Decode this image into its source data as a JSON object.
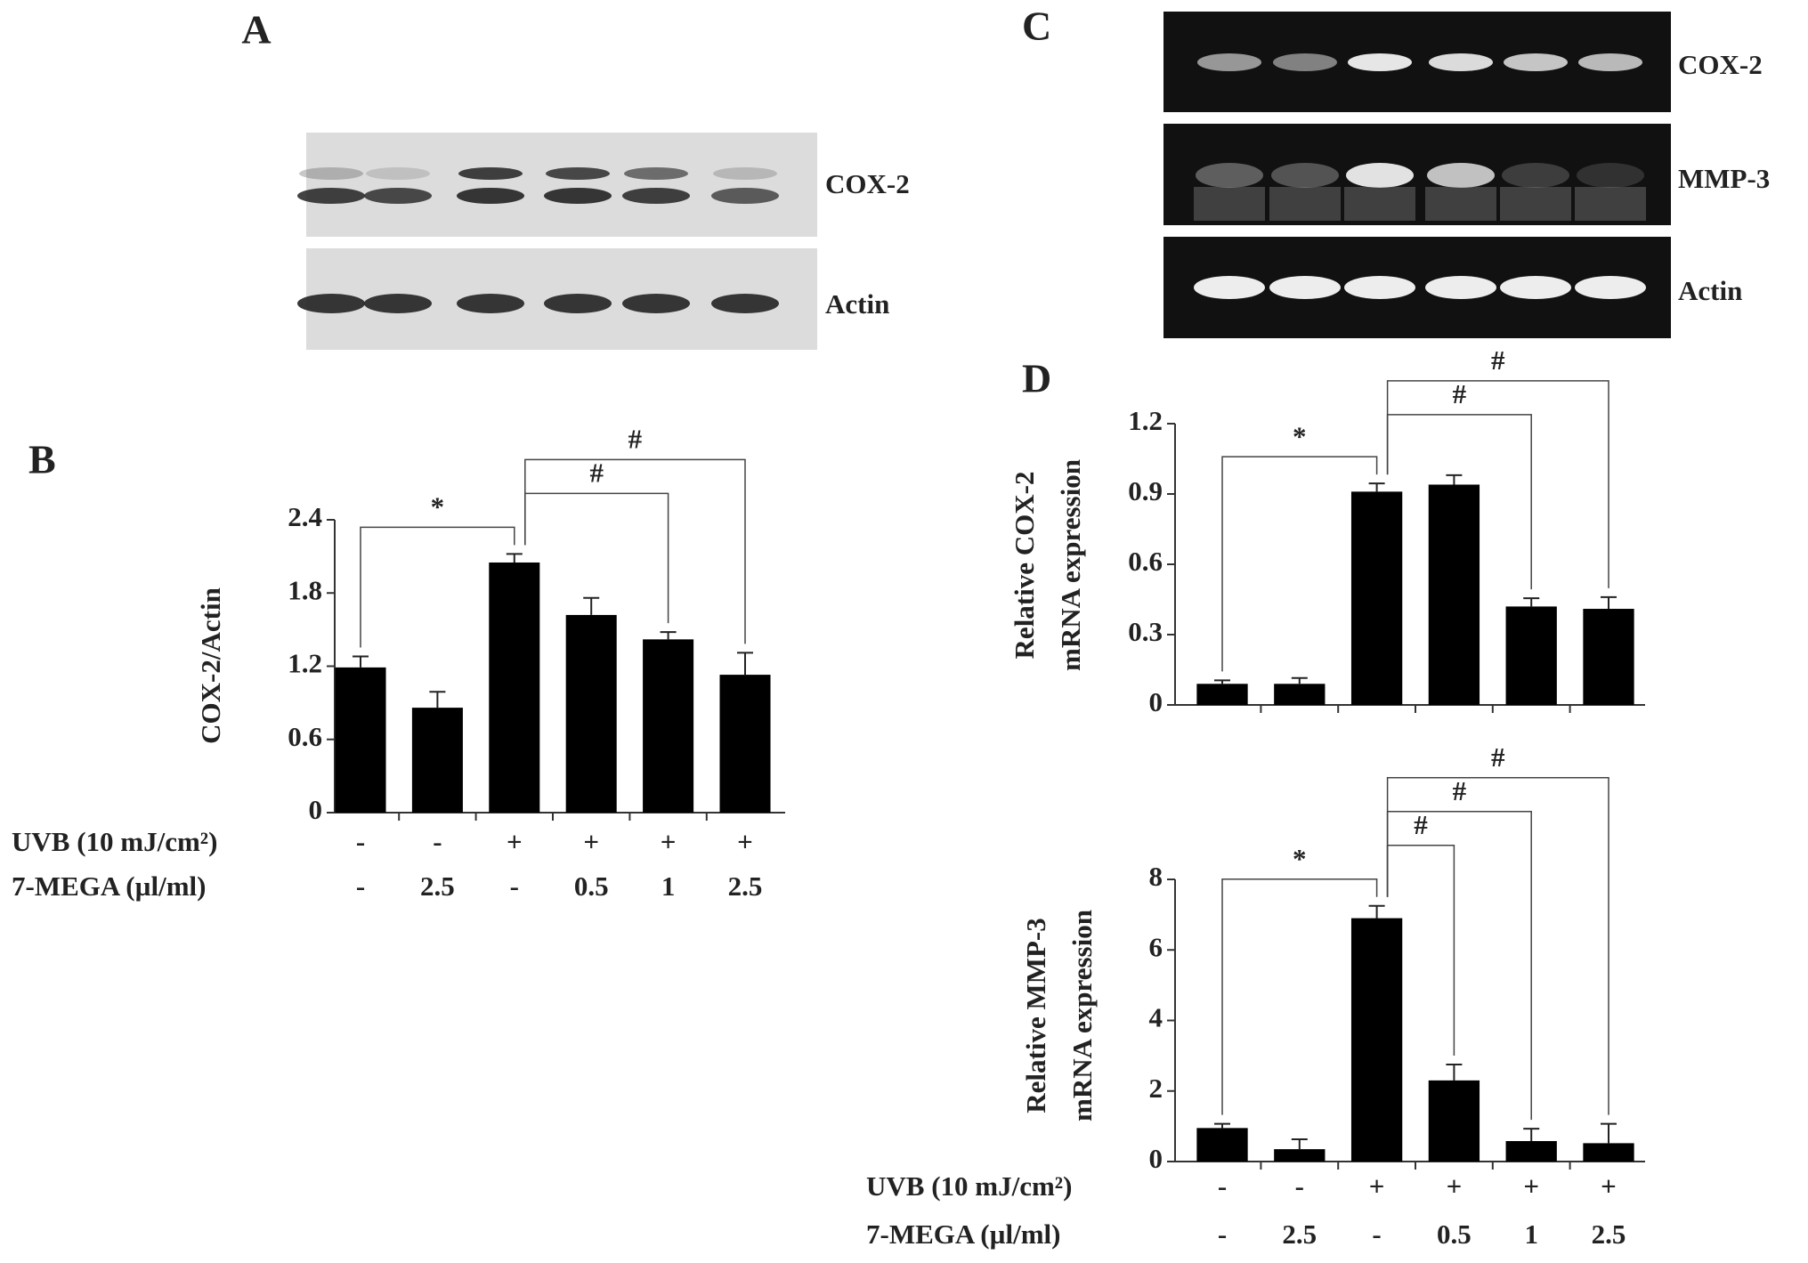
{
  "panel_labels": [
    "A",
    "B",
    "C",
    "D"
  ],
  "blots": {
    "A": {
      "bands": [
        "COX-2",
        "Actin"
      ]
    },
    "C": {
      "bands": [
        "COX-2",
        "MMP-3",
        "Actin"
      ]
    }
  },
  "chart_data": [
    {
      "type": "bar",
      "ylabel": [
        "COX-2/Actin"
      ],
      "color": "#000000",
      "values": [
        1.19,
        0.86,
        2.05,
        1.62,
        1.42,
        1.13
      ],
      "errors": [
        0.09,
        0.13,
        0.07,
        0.14,
        0.06,
        0.18
      ],
      "ylim": [
        0,
        2.4
      ],
      "yticks": [
        0,
        0.6,
        1.2,
        1.8,
        2.4
      ],
      "brackets": [
        {
          "label": "*",
          "from": 0,
          "to": 2
        },
        {
          "label": "#",
          "from": 2,
          "to": 4
        },
        {
          "label": "#",
          "from": 2,
          "to": 5
        }
      ],
      "treatment_rows": [
        {
          "label": "UVB (10 mJ/cm²)",
          "values": [
            "-",
            "-",
            "+",
            "+",
            "+",
            "+"
          ]
        },
        {
          "label": "7-MEGA (µl/ml)",
          "values": [
            "-",
            "2.5",
            "-",
            "0.5",
            "1",
            "2.5"
          ]
        }
      ]
    },
    {
      "type": "bar",
      "ylabel": [
        "Relative COX-2",
        "mRNA expression"
      ],
      "color": "#000000",
      "values": [
        0.09,
        0.09,
        0.91,
        0.94,
        0.42,
        0.41
      ],
      "errors": [
        0.015,
        0.025,
        0.035,
        0.04,
        0.035,
        0.05
      ],
      "ylim": [
        0,
        1.2
      ],
      "yticks": [
        0,
        0.3,
        0.6,
        0.9,
        1.2
      ],
      "brackets": [
        {
          "label": "*",
          "from": 0,
          "to": 2
        },
        {
          "label": "#",
          "from": 2,
          "to": 4
        },
        {
          "label": "#",
          "from": 2,
          "to": 5
        }
      ]
    },
    {
      "type": "bar",
      "ylabel": [
        "Relative MMP-3",
        "mRNA expression"
      ],
      "color": "#000000",
      "values": [
        0.95,
        0.35,
        6.9,
        2.3,
        0.58,
        0.52
      ],
      "errors": [
        0.12,
        0.28,
        0.35,
        0.45,
        0.35,
        0.55
      ],
      "ylim": [
        0,
        8
      ],
      "yticks": [
        0,
        2,
        4,
        6,
        8
      ],
      "brackets": [
        {
          "label": "*",
          "from": 0,
          "to": 2
        },
        {
          "label": "#",
          "from": 2,
          "to": 3
        },
        {
          "label": "#",
          "from": 2,
          "to": 4
        },
        {
          "label": "#",
          "from": 2,
          "to": 5
        }
      ],
      "treatment_rows": [
        {
          "label": "UVB (10 mJ/cm²)",
          "values": [
            "-",
            "-",
            "+",
            "+",
            "+",
            "+"
          ]
        },
        {
          "label": "7-MEGA (µl/ml)",
          "values": [
            "-",
            "2.5",
            "-",
            "0.5",
            "1",
            "2.5"
          ]
        }
      ]
    }
  ]
}
